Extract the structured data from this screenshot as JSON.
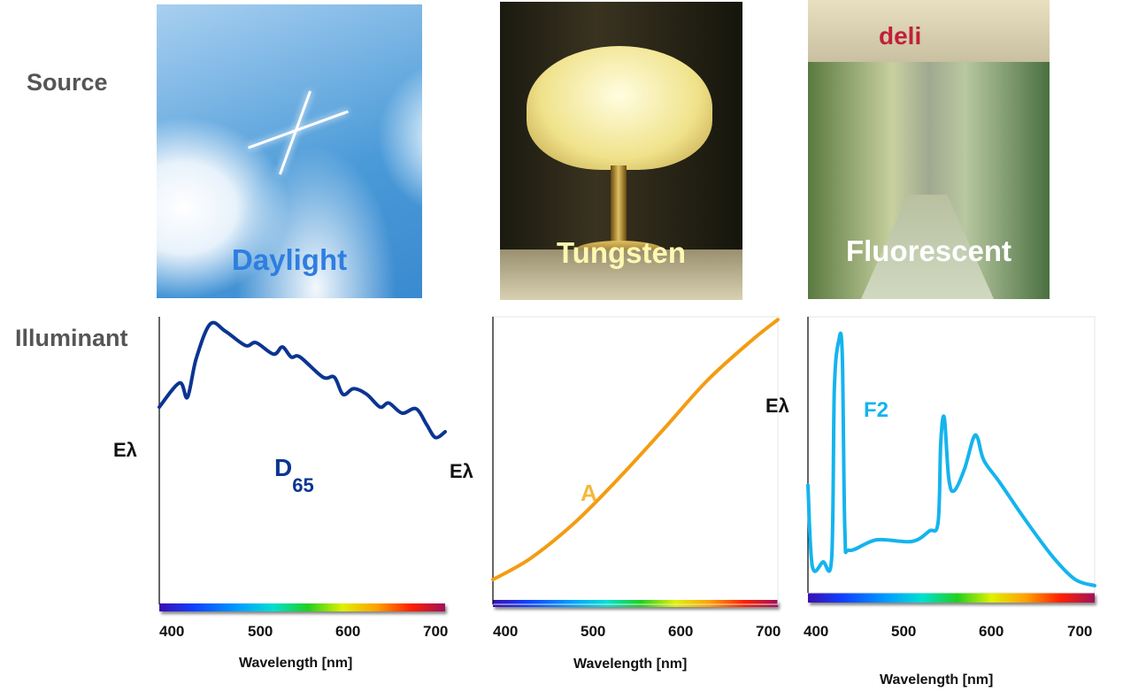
{
  "row_labels": {
    "source": "Source",
    "illuminant": "Illuminant"
  },
  "sources": [
    {
      "caption": "Daylight",
      "color": "#2e7ee0"
    },
    {
      "caption": "Tungsten",
      "color": "#fff8b0"
    },
    {
      "caption": "Fluorescent",
      "color": "#ffffff"
    }
  ],
  "storefront_sign": "deli",
  "chart_data": [
    {
      "type": "line",
      "name": "D",
      "subscript": "65",
      "color": "#0a3591",
      "ylabel": "Eλ",
      "xlabel": "Wavelength [nm]",
      "xticks": [
        "400",
        "500",
        "600",
        "700"
      ],
      "xlim": [
        385,
        710
      ],
      "ylim": [
        0,
        100
      ],
      "x": [
        385,
        408,
        417,
        427,
        443,
        460,
        483,
        495,
        515,
        525,
        535,
        545,
        571,
        584,
        594,
        606,
        621,
        636,
        646,
        661,
        677,
        689,
        699,
        710
      ],
      "y": [
        68.6,
        77,
        72,
        85.5,
        97.5,
        95,
        90,
        91,
        87,
        89.5,
        86,
        86,
        79,
        79,
        73,
        75,
        73,
        68.6,
        70,
        66.5,
        68,
        62.5,
        58,
        60
      ]
    },
    {
      "type": "line",
      "name": "A",
      "color": "#f39c12",
      "label_color": "#f5b83c",
      "ylabel": "Eλ",
      "xlabel": "Wavelength [nm]",
      "xticks": [
        "400",
        "500",
        "600",
        "700"
      ],
      "xlim": [
        384,
        709
      ],
      "ylim": [
        0,
        100
      ],
      "x": [
        384,
        427,
        478,
        528,
        579,
        629,
        680,
        709
      ],
      "y": [
        8.6,
        16,
        28.6,
        44,
        61,
        78,
        92,
        99
      ]
    },
    {
      "type": "line",
      "name": "F2",
      "color": "#14b4ee",
      "ylabel": "Eλ",
      "xlabel": "Wavelength [nm]",
      "xticks": [
        "400",
        "500",
        "600",
        "700"
      ],
      "xlim": [
        389,
        715
      ],
      "ylim": [
        0,
        100
      ],
      "x": [
        389,
        394,
        406,
        416,
        419,
        424,
        428,
        431,
        436,
        467,
        507,
        527,
        537,
        540,
        544,
        549,
        555,
        567,
        577,
        582,
        589,
        607,
        638,
        668,
        693,
        715
      ],
      "y": [
        39,
        9.6,
        11.2,
        12.8,
        73.7,
        91.3,
        86.5,
        22.4,
        15.4,
        19.2,
        18.6,
        22.4,
        25.6,
        54.5,
        63.5,
        41.7,
        36.9,
        44.9,
        56,
        56,
        48,
        40,
        25.6,
        12.8,
        4.8,
        2.6
      ]
    }
  ]
}
